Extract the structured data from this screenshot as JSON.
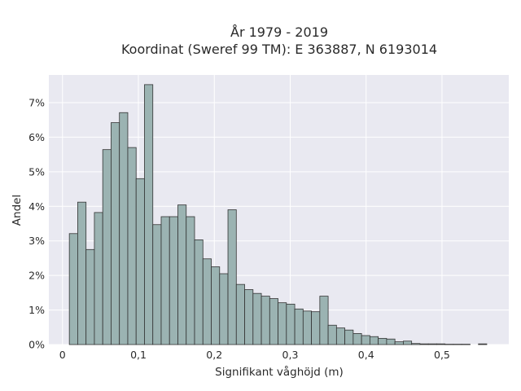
{
  "chart_data": {
    "type": "bar",
    "title": "År 1979 - 2019",
    "subtitle": "Koordinat (Sweref 99 TM): E 363887, N 6193014",
    "xlabel": "Signifikant våghöjd (m)",
    "ylabel": "Andel",
    "xlim": [
      -0.018,
      0.588
    ],
    "ylim": [
      0,
      0.078
    ],
    "xticks": [
      0,
      0.1,
      0.2,
      0.3,
      0.4,
      0.5
    ],
    "xtick_labels": [
      "0",
      "0,1",
      "0,2",
      "0,3",
      "0,4",
      "0,5"
    ],
    "yticks": [
      0,
      0.01,
      0.02,
      0.03,
      0.04,
      0.05,
      0.06,
      0.07
    ],
    "ytick_labels": [
      "0%",
      "1%",
      "2%",
      "3%",
      "4%",
      "5%",
      "6%",
      "7%"
    ],
    "grid": true,
    "bar_color": "#9bb3b2",
    "bar_edge": "#333333",
    "background": "#e9e9f1",
    "bins": [
      [
        0.009,
        0.02,
        0.0321
      ],
      [
        0.02,
        0.031,
        0.0412
      ],
      [
        0.031,
        0.042,
        0.0275
      ],
      [
        0.042,
        0.053,
        0.0382
      ],
      [
        0.053,
        0.064,
        0.0564
      ],
      [
        0.064,
        0.075,
        0.0642
      ],
      [
        0.075,
        0.086,
        0.0671
      ],
      [
        0.086,
        0.097,
        0.057
      ],
      [
        0.097,
        0.108,
        0.048
      ],
      [
        0.108,
        0.119,
        0.0752
      ],
      [
        0.119,
        0.13,
        0.0347
      ],
      [
        0.13,
        0.141,
        0.037
      ],
      [
        0.141,
        0.152,
        0.037
      ],
      [
        0.152,
        0.163,
        0.0404
      ],
      [
        0.163,
        0.174,
        0.037
      ],
      [
        0.174,
        0.185,
        0.0303
      ],
      [
        0.185,
        0.196,
        0.0248
      ],
      [
        0.196,
        0.207,
        0.0225
      ],
      [
        0.207,
        0.218,
        0.0205
      ],
      [
        0.218,
        0.229,
        0.039
      ],
      [
        0.229,
        0.24,
        0.0174
      ],
      [
        0.24,
        0.251,
        0.0159
      ],
      [
        0.251,
        0.262,
        0.0148
      ],
      [
        0.262,
        0.273,
        0.014
      ],
      [
        0.273,
        0.284,
        0.0133
      ],
      [
        0.284,
        0.295,
        0.0121
      ],
      [
        0.295,
        0.306,
        0.0117
      ],
      [
        0.306,
        0.317,
        0.0103
      ],
      [
        0.317,
        0.328,
        0.0097
      ],
      [
        0.328,
        0.339,
        0.0095
      ],
      [
        0.339,
        0.35,
        0.014
      ],
      [
        0.35,
        0.361,
        0.0056
      ],
      [
        0.361,
        0.372,
        0.0048
      ],
      [
        0.372,
        0.383,
        0.0042
      ],
      [
        0.383,
        0.394,
        0.0032
      ],
      [
        0.394,
        0.405,
        0.0026
      ],
      [
        0.405,
        0.416,
        0.0023
      ],
      [
        0.416,
        0.427,
        0.0018
      ],
      [
        0.427,
        0.438,
        0.0016
      ],
      [
        0.438,
        0.449,
        0.0008
      ],
      [
        0.449,
        0.46,
        0.001
      ],
      [
        0.46,
        0.471,
        0.0003
      ],
      [
        0.471,
        0.482,
        0.0002
      ],
      [
        0.482,
        0.493,
        0.0002
      ],
      [
        0.493,
        0.504,
        0.0002
      ],
      [
        0.504,
        0.515,
        0.0001
      ],
      [
        0.515,
        0.526,
        0.0001
      ],
      [
        0.526,
        0.537,
        0.0001
      ],
      [
        0.548,
        0.559,
        0.0002
      ]
    ]
  }
}
